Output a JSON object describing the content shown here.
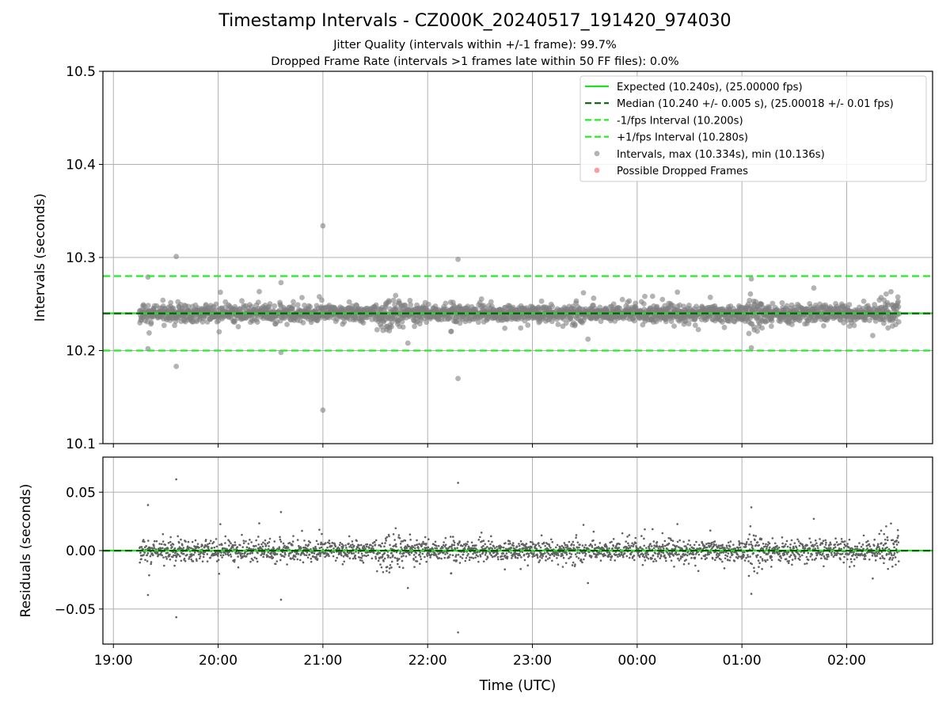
{
  "chart_data": [
    {
      "type": "scatter",
      "title": "Timestamp Intervals - CZ000K_20240517_191420_974030",
      "subtitle_lines": [
        "Jitter Quality (intervals within +/-1 frame): 99.7%",
        "Dropped Frame Rate (intervals >1 frames late within 50 FF files): 0.0%"
      ],
      "xlabel": "",
      "ylabel": "Intervals (seconds)",
      "ylim": [
        10.1,
        10.5
      ],
      "yticks": [
        10.1,
        10.2,
        10.3,
        10.4,
        10.5
      ],
      "ytick_labels": [
        "10.1",
        "10.2",
        "10.3",
        "10.4",
        "10.5"
      ],
      "x_range_hours": [
        18.9,
        26.82
      ],
      "grid": true,
      "legend_position": "upper right",
      "reference_lines": [
        {
          "name": "Expected (10.240s), (25.00000 fps)",
          "y": 10.24,
          "color": "#22dd22",
          "style": "solid"
        },
        {
          "name": "Median (10.240 +/- 0.005 s), (25.00018 +/- 0.01 fps)",
          "y": 10.2399,
          "color": "#006400",
          "style": "dashed"
        },
        {
          "name": "-1/fps Interval (10.200s)",
          "y": 10.2,
          "color": "#22ee22",
          "style": "dashed"
        },
        {
          "name": "+1/fps Interval (10.280s)",
          "y": 10.28,
          "color": "#22ee22",
          "style": "dashed"
        }
      ],
      "series": [
        {
          "name": "Intervals, max (10.334s), min (10.136s)",
          "color": "#808080",
          "x_start_hour": 19.25,
          "x_end_hour": 26.5,
          "count": 2540,
          "values_note_baseline": 10.24,
          "outliers": [
            {
              "x": 19.6,
              "y": 10.301
            },
            {
              "x": 19.6,
              "y": 10.183
            },
            {
              "x": 21.0,
              "y": 10.334
            },
            {
              "x": 21.0,
              "y": 10.136
            },
            {
              "x": 22.29,
              "y": 10.298
            },
            {
              "x": 22.29,
              "y": 10.17
            },
            {
              "x": 19.33,
              "y": 10.279
            },
            {
              "x": 19.33,
              "y": 10.202
            },
            {
              "x": 20.6,
              "y": 10.273
            },
            {
              "x": 20.6,
              "y": 10.198
            },
            {
              "x": 25.09,
              "y": 10.277
            },
            {
              "x": 25.09,
              "y": 10.203
            }
          ]
        },
        {
          "name": "Possible Dropped Frames",
          "color": "#f06060",
          "values": []
        }
      ]
    },
    {
      "type": "scatter",
      "xlabel": "Time (UTC)",
      "ylabel": "Residuals (seconds)",
      "ylim": [
        -0.08,
        0.08
      ],
      "yticks": [
        -0.05,
        0.0,
        0.05
      ],
      "ytick_labels": [
        "−0.05",
        "0.00",
        "0.05"
      ],
      "xticks_hours": [
        19,
        20,
        21,
        22,
        23,
        24,
        25,
        26
      ],
      "xtick_labels": [
        "19:00",
        "20:00",
        "21:00",
        "22:00",
        "23:00",
        "00:00",
        "01:00",
        "02:00"
      ],
      "grid": true,
      "reference_lines": [
        {
          "y": 0.0,
          "color": "#22dd22",
          "style": "solid"
        },
        {
          "y": -0.0001,
          "color": "#006400",
          "style": "dashed"
        }
      ],
      "series": [
        {
          "color": "#606060",
          "baseline": 0.0,
          "mirrors_intervals_minus": 10.24
        }
      ]
    }
  ]
}
